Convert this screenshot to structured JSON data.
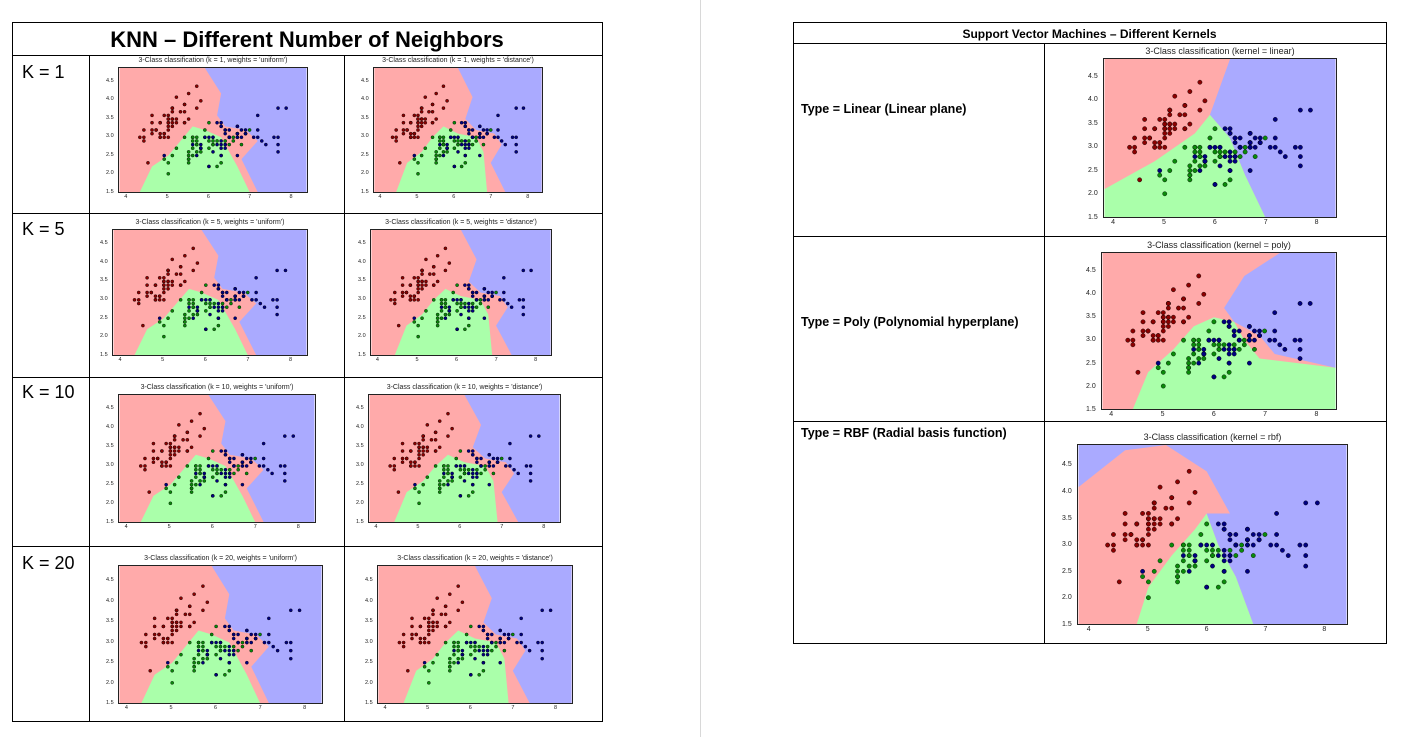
{
  "knn": {
    "title": "KNN – Different Number of Neighbors",
    "rows": [
      {
        "label": "K = 1",
        "k": 1
      },
      {
        "label": "K = 5",
        "k": 5
      },
      {
        "label": "K = 10",
        "k": 10
      },
      {
        "label": "K = 20",
        "k": 20
      }
    ],
    "plot_titles": [
      [
        "3-Class classification (k = 1, weights = 'uniform')",
        "3-Class classification (k = 1, weights = 'distance')"
      ],
      [
        "3-Class classification (k = 5, weights = 'uniform')",
        "3-Class classification (k = 5, weights = 'distance')"
      ],
      [
        "3-Class classification (k = 10, weights = 'uniform')",
        "3-Class classification (k = 10, weights = 'distance')"
      ],
      [
        "3-Class classification (k = 20, weights = 'uniform')",
        "3-Class classification (k = 20, weights = 'distance')"
      ]
    ]
  },
  "svm": {
    "title": "Support Vector Machines – Different Kernels",
    "rows": [
      {
        "label": "Type = Linear  (Linear plane)",
        "plot_title": "3-Class classification (kernel = linear)"
      },
      {
        "label": "Type = Poly (Polynomial hyperplane)",
        "plot_title": "3-Class classification (kernel = poly)"
      },
      {
        "label": "Type = RBF (Radial basis function)",
        "plot_title": "3-Class classification (kernel = rbf)"
      }
    ]
  },
  "axes": {
    "x_ticks": [
      "4",
      "5",
      "6",
      "7",
      "8"
    ],
    "y_ticks": [
      "1.5",
      "2.0",
      "2.5",
      "3.0",
      "3.5",
      "4.0",
      "4.5"
    ]
  },
  "colors": {
    "region_class0": "#ffaaaa",
    "region_class1": "#aaffaa",
    "region_class2": "#aaaaff",
    "point_class0": "#8b0000",
    "point_class1": "#0a8a0a",
    "point_class2": "#000080"
  },
  "scatter_points": {
    "class0": [
      [
        5.1,
        3.5
      ],
      [
        4.9,
        3.0
      ],
      [
        4.7,
        3.2
      ],
      [
        4.6,
        3.1
      ],
      [
        5.0,
        3.6
      ],
      [
        5.4,
        3.9
      ],
      [
        4.6,
        3.4
      ],
      [
        5.0,
        3.4
      ],
      [
        4.4,
        2.9
      ],
      [
        4.9,
        3.1
      ],
      [
        5.4,
        3.7
      ],
      [
        4.8,
        3.4
      ],
      [
        4.8,
        3.0
      ],
      [
        4.3,
        3.0
      ],
      [
        5.8,
        4.0
      ],
      [
        5.7,
        4.4
      ],
      [
        5.4,
        3.9
      ],
      [
        5.1,
        3.5
      ],
      [
        5.7,
        3.8
      ],
      [
        5.1,
        3.8
      ],
      [
        5.4,
        3.4
      ],
      [
        5.1,
        3.7
      ],
      [
        4.6,
        3.6
      ],
      [
        5.1,
        3.3
      ],
      [
        4.8,
        3.4
      ],
      [
        5.0,
        3.0
      ],
      [
        5.0,
        3.4
      ],
      [
        5.2,
        3.5
      ],
      [
        5.2,
        3.4
      ],
      [
        4.7,
        3.2
      ],
      [
        4.8,
        3.1
      ],
      [
        5.4,
        3.4
      ],
      [
        5.2,
        4.1
      ],
      [
        5.5,
        4.2
      ],
      [
        4.9,
        3.1
      ],
      [
        5.0,
        3.2
      ],
      [
        5.5,
        3.5
      ],
      [
        4.9,
        3.6
      ],
      [
        4.4,
        3.0
      ],
      [
        5.1,
        3.4
      ],
      [
        5.0,
        3.5
      ],
      [
        4.5,
        2.3
      ],
      [
        4.4,
        3.2
      ],
      [
        5.0,
        3.5
      ],
      [
        5.1,
        3.8
      ],
      [
        4.8,
        3.0
      ],
      [
        5.1,
        3.8
      ],
      [
        4.6,
        3.2
      ],
      [
        5.3,
        3.7
      ],
      [
        5.0,
        3.3
      ]
    ],
    "class1": [
      [
        7.0,
        3.2
      ],
      [
        6.4,
        3.2
      ],
      [
        6.9,
        3.1
      ],
      [
        5.5,
        2.3
      ],
      [
        6.5,
        2.8
      ],
      [
        5.7,
        2.8
      ],
      [
        6.3,
        3.3
      ],
      [
        4.9,
        2.4
      ],
      [
        6.6,
        2.9
      ],
      [
        5.2,
        2.7
      ],
      [
        5.0,
        2.0
      ],
      [
        5.9,
        3.0
      ],
      [
        6.0,
        2.2
      ],
      [
        6.1,
        2.9
      ],
      [
        5.6,
        2.9
      ],
      [
        6.7,
        3.1
      ],
      [
        5.6,
        3.0
      ],
      [
        5.8,
        2.7
      ],
      [
        6.2,
        2.2
      ],
      [
        5.6,
        2.5
      ],
      [
        5.9,
        3.2
      ],
      [
        6.1,
        2.8
      ],
      [
        6.3,
        2.5
      ],
      [
        6.1,
        2.8
      ],
      [
        6.4,
        2.9
      ],
      [
        6.6,
        3.0
      ],
      [
        6.8,
        2.8
      ],
      [
        6.7,
        3.0
      ],
      [
        6.0,
        2.9
      ],
      [
        5.7,
        2.6
      ],
      [
        5.5,
        2.4
      ],
      [
        5.5,
        2.4
      ],
      [
        5.8,
        2.7
      ],
      [
        6.0,
        2.7
      ],
      [
        5.4,
        3.0
      ],
      [
        6.0,
        3.4
      ],
      [
        6.7,
        3.1
      ],
      [
        6.3,
        2.3
      ],
      [
        5.6,
        3.0
      ],
      [
        5.5,
        2.5
      ],
      [
        5.5,
        2.6
      ],
      [
        6.1,
        3.0
      ],
      [
        5.8,
        2.6
      ],
      [
        5.0,
        2.3
      ],
      [
        5.6,
        2.7
      ],
      [
        5.7,
        3.0
      ],
      [
        5.7,
        2.9
      ],
      [
        6.2,
        2.9
      ],
      [
        5.1,
        2.5
      ],
      [
        5.7,
        2.8
      ]
    ],
    "class2": [
      [
        6.3,
        3.3
      ],
      [
        5.8,
        2.7
      ],
      [
        7.1,
        3.0
      ],
      [
        6.3,
        2.9
      ],
      [
        6.5,
        3.0
      ],
      [
        7.6,
        3.0
      ],
      [
        4.9,
        2.5
      ],
      [
        7.3,
        2.9
      ],
      [
        6.7,
        2.5
      ],
      [
        7.2,
        3.6
      ],
      [
        6.5,
        3.2
      ],
      [
        6.4,
        2.7
      ],
      [
        6.8,
        3.0
      ],
      [
        5.7,
        2.5
      ],
      [
        5.8,
        2.8
      ],
      [
        6.4,
        3.2
      ],
      [
        6.5,
        3.0
      ],
      [
        7.7,
        3.8
      ],
      [
        7.7,
        2.6
      ],
      [
        6.0,
        2.2
      ],
      [
        6.9,
        3.2
      ],
      [
        5.6,
        2.8
      ],
      [
        7.7,
        2.8
      ],
      [
        6.3,
        2.7
      ],
      [
        6.7,
        3.3
      ],
      [
        7.2,
        3.2
      ],
      [
        6.2,
        2.8
      ],
      [
        6.1,
        3.0
      ],
      [
        6.4,
        2.8
      ],
      [
        7.2,
        3.0
      ],
      [
        7.4,
        2.8
      ],
      [
        7.9,
        3.8
      ],
      [
        6.4,
        2.8
      ],
      [
        6.3,
        2.8
      ],
      [
        6.1,
        2.6
      ],
      [
        7.7,
        3.0
      ],
      [
        6.3,
        3.4
      ],
      [
        6.4,
        3.1
      ],
      [
        6.0,
        3.0
      ],
      [
        6.9,
        3.1
      ],
      [
        6.7,
        3.1
      ],
      [
        6.9,
        3.1
      ],
      [
        5.8,
        2.7
      ],
      [
        6.8,
        3.2
      ],
      [
        6.7,
        3.3
      ],
      [
        6.7,
        3.0
      ],
      [
        6.3,
        2.5
      ],
      [
        6.5,
        3.0
      ],
      [
        6.2,
        3.4
      ],
      [
        5.9,
        3.0
      ]
    ]
  }
}
